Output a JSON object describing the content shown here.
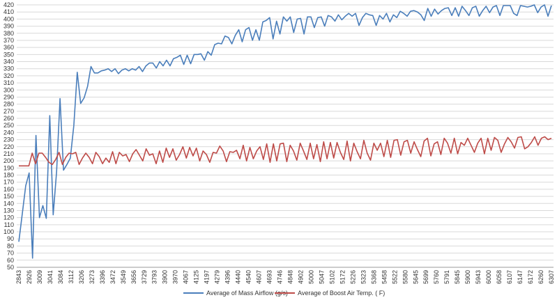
{
  "chart_data": {
    "type": "line",
    "title": "",
    "xlabel": "",
    "ylabel": "",
    "ylim": [
      50,
      420
    ],
    "y_ticks": [
      50,
      60,
      70,
      80,
      90,
      100,
      110,
      120,
      130,
      140,
      150,
      160,
      170,
      180,
      190,
      200,
      210,
      220,
      230,
      240,
      250,
      260,
      270,
      280,
      290,
      300,
      310,
      320,
      330,
      340,
      350,
      360,
      370,
      380,
      390,
      400,
      410,
      420
    ],
    "grid": "horizontal",
    "legend_position": "bottom",
    "x_tick_labels": [
      "2843",
      "2926",
      "3009",
      "3041",
      "3084",
      "3112",
      "3206",
      "3273",
      "3396",
      "3472",
      "3549",
      "3656",
      "3729",
      "3793",
      "3900",
      "3970",
      "4067",
      "4125",
      "4197",
      "4279",
      "4396",
      "4440",
      "4540",
      "4607",
      "4693",
      "4746",
      "4848",
      "4902",
      "5000",
      "5047",
      "5102",
      "5172",
      "5226",
      "5323",
      "5368",
      "5458",
      "5522",
      "5580",
      "5645",
      "5699",
      "5760",
      "5791",
      "5845",
      "5900",
      "5943",
      "6000",
      "6058",
      "6107",
      "6147",
      "6172",
      "6260",
      "6307"
    ],
    "series": [
      {
        "name": "Average of Mass Airflow (g/s)",
        "color": "#4a7ebb",
        "values": [
          86,
          125,
          165,
          183,
          63,
          236,
          120,
          137,
          119,
          264,
          124,
          185,
          288,
          187,
          195,
          204,
          250,
          325,
          281,
          289,
          305,
          333,
          324,
          324,
          327,
          328,
          330,
          326,
          330,
          323,
          328,
          330,
          327,
          330,
          328,
          333,
          326,
          334,
          338,
          338,
          331,
          340,
          334,
          342,
          334,
          344,
          346,
          349,
          336,
          349,
          337,
          350,
          350,
          351,
          342,
          354,
          349,
          364,
          366,
          365,
          376,
          374,
          365,
          377,
          385,
          368,
          385,
          388,
          370,
          385,
          370,
          396,
          398,
          402,
          372,
          397,
          379,
          403,
          397,
          403,
          381,
          400,
          401,
          379,
          403,
          403,
          388,
          402,
          403,
          390,
          405,
          403,
          397,
          406,
          399,
          404,
          408,
          404,
          408,
          391,
          402,
          408,
          406,
          405,
          391,
          405,
          400,
          408,
          396,
          406,
          402,
          411,
          408,
          404,
          411,
          412,
          410,
          406,
          398,
          415,
          404,
          414,
          407,
          412,
          415,
          416,
          405,
          416,
          404,
          418,
          412,
          405,
          416,
          418,
          404,
          412,
          418,
          409,
          417,
          419,
          405,
          419,
          419,
          419,
          408,
          405,
          419,
          418,
          417,
          418,
          420,
          409,
          417,
          420,
          404,
          419
        ]
      },
      {
        "name": "Average of Boost Air Temp. ( F)",
        "color": "#be4b48",
        "values": [
          193,
          193,
          193,
          193,
          211,
          196,
          211,
          211,
          205,
          198,
          195,
          202,
          212,
          195,
          205,
          211,
          210,
          212,
          195,
          204,
          211,
          205,
          196,
          212,
          206,
          196,
          204,
          198,
          213,
          196,
          212,
          207,
          209,
          199,
          210,
          216,
          208,
          200,
          217,
          208,
          210,
          196,
          214,
          198,
          218,
          205,
          217,
          201,
          209,
          220,
          204,
          219,
          207,
          218,
          200,
          214,
          209,
          198,
          212,
          211,
          221,
          214,
          199,
          213,
          212,
          215,
          203,
          222,
          200,
          219,
          203,
          214,
          220,
          202,
          224,
          198,
          224,
          200,
          224,
          225,
          199,
          222,
          214,
          201,
          225,
          214,
          202,
          225,
          203,
          223,
          199,
          227,
          203,
          226,
          204,
          226,
          212,
          202,
          228,
          200,
          225,
          213,
          203,
          229,
          211,
          201,
          225,
          215,
          225,
          206,
          229,
          205,
          229,
          230,
          208,
          227,
          229,
          211,
          227,
          216,
          206,
          228,
          232,
          207,
          224,
          227,
          209,
          232,
          225,
          211,
          232,
          210,
          226,
          222,
          232,
          222,
          212,
          225,
          232,
          210,
          232,
          215,
          233,
          229,
          212,
          224,
          233,
          227,
          218,
          233,
          234,
          217,
          220,
          226,
          234,
          222,
          232,
          234,
          230,
          232
        ]
      }
    ]
  }
}
